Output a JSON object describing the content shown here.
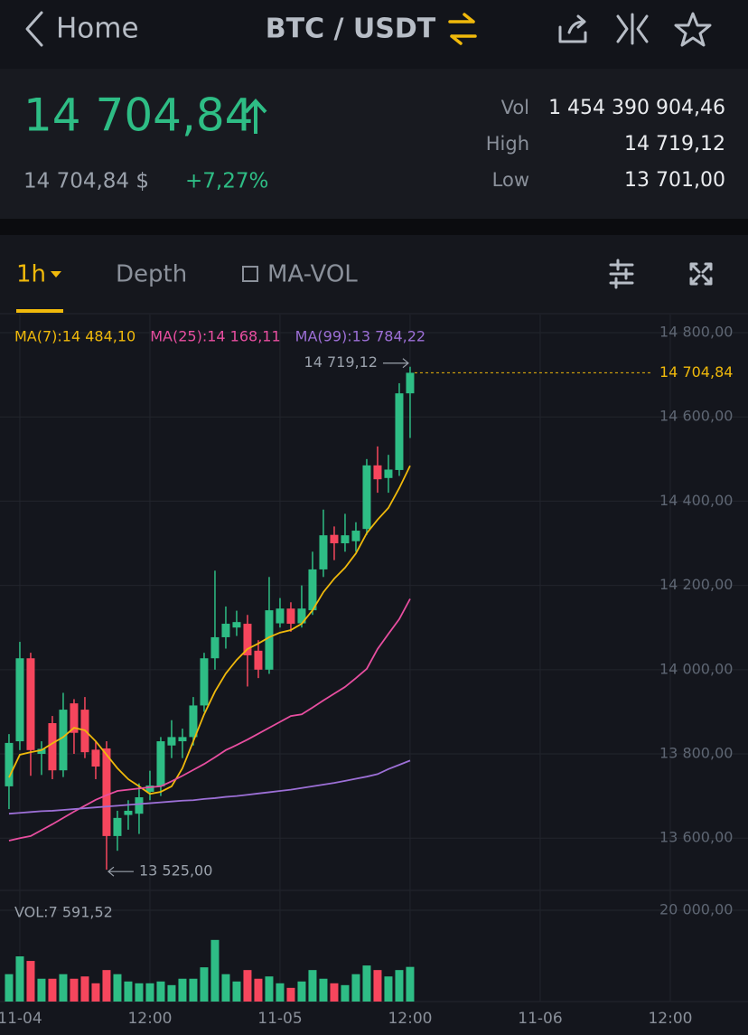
{
  "ui": {
    "back": "Home",
    "pair": "BTC / USDT",
    "price": "14 704,84",
    "price_usd": "14 704,84 $",
    "change": "+7,27%",
    "stats": [
      {
        "label": "Vol",
        "value": "1 454 390 904,46"
      },
      {
        "label": "High",
        "value": "14 719,12"
      },
      {
        "label": "Low",
        "value": "13 701,00"
      }
    ],
    "tabs": [
      "1h",
      "Depth",
      "MA-VOL"
    ]
  },
  "chart_data": [
    {
      "type": "candlestick",
      "x": [
        -1,
        0,
        1,
        2,
        3,
        4,
        5,
        6,
        7,
        8,
        9,
        10,
        11,
        12,
        13,
        14,
        15,
        16,
        17,
        18,
        19,
        20,
        21,
        22,
        23,
        24,
        25,
        26,
        27,
        28,
        29,
        30,
        31,
        32,
        33,
        34,
        35,
        36
      ],
      "open": [
        13723,
        13830,
        14027,
        13800,
        13873,
        13761,
        13920,
        13905,
        13810,
        13813,
        13605,
        13655,
        13658,
        13710,
        13723,
        13820,
        13830,
        13840,
        13915,
        14027,
        14077,
        14100,
        14109,
        14045,
        14000,
        14110,
        14145,
        14110,
        14141,
        14238,
        14320,
        14300,
        14305,
        14334,
        14485,
        14455,
        14474,
        14656
      ],
      "high": [
        13847,
        14066,
        14040,
        13830,
        13890,
        13945,
        13930,
        13935,
        13830,
        13830,
        13665,
        13690,
        13730,
        13760,
        13840,
        13880,
        13860,
        13935,
        14040,
        14235,
        14150,
        14140,
        14130,
        14070,
        14220,
        14170,
        14160,
        14200,
        14280,
        14380,
        14340,
        14370,
        14350,
        14500,
        14530,
        14510,
        14680,
        14719.12
      ],
      "low": [
        13669,
        13809,
        13748,
        13750,
        13740,
        13745,
        13800,
        13790,
        13740,
        13525,
        13570,
        13620,
        13610,
        13690,
        13700,
        13790,
        13790,
        13820,
        13900,
        14000,
        14050,
        14080,
        13960,
        13980,
        13990,
        14100,
        14090,
        14100,
        14130,
        14220,
        14260,
        14280,
        14280,
        14320,
        14420,
        14420,
        14460,
        14550
      ],
      "close": [
        13826,
        14027,
        13809,
        13812,
        13761,
        13905,
        13850,
        13804,
        13770,
        13605,
        13648,
        13665,
        13697,
        13725,
        13830,
        13840,
        13840,
        13915,
        14027,
        14077,
        14109,
        14113,
        14034,
        14000,
        14141,
        14145,
        14109,
        14145,
        14238,
        14319,
        14300,
        14319,
        14330,
        14485,
        14452,
        14475,
        14656,
        14704.84
      ],
      "up_color": "#2ebd85",
      "down_color": "#f6465d",
      "series": [
        {
          "name": "MA(7):14 484,10",
          "color": "#f0b90b",
          "values": [
            13744,
            13798,
            13804,
            13809,
            13825,
            13840,
            13862,
            13856,
            13830,
            13798,
            13766,
            13740,
            13723,
            13705,
            13710,
            13723,
            13766,
            13830,
            13894,
            13948,
            13991,
            14023,
            14049,
            14062,
            14077,
            14088,
            14094,
            14109,
            14141,
            14184,
            14216,
            14242,
            14276,
            14324,
            14356,
            14384,
            14431,
            14484.1
          ]
        },
        {
          "name": "MA(25):14 168,11",
          "color": "#e84ea0",
          "values": [
            13594,
            13600,
            13605,
            13619,
            13633,
            13648,
            13663,
            13677,
            13691,
            13702,
            13712,
            13715,
            13718,
            13721,
            13723,
            13735,
            13748,
            13762,
            13776,
            13792,
            13809,
            13821,
            13834,
            13848,
            13862,
            13876,
            13890,
            13894,
            13910,
            13927,
            13943,
            13959,
            13980,
            14002,
            14049,
            14085,
            14120,
            14168.11
          ]
        },
        {
          "name": "MA(99):13 784,22",
          "color": "#9c6fd6",
          "values": [
            13658,
            13660,
            13662,
            13664,
            13665,
            13667,
            13669,
            13671,
            13673,
            13675,
            13677,
            13679,
            13681,
            13683,
            13685,
            13687,
            13689,
            13690,
            13693,
            13695,
            13698,
            13700,
            13703,
            13706,
            13709,
            13712,
            13715,
            13719,
            13723,
            13727,
            13731,
            13736,
            13741,
            13746,
            13752,
            13764,
            13774,
            13784.22
          ]
        }
      ],
      "xlim": [
        -1.83,
        67.17
      ],
      "xticks": [
        {
          "value": 0,
          "label": "11-04"
        },
        {
          "value": 12,
          "label": "12:00"
        },
        {
          "value": 24,
          "label": "11-05"
        },
        {
          "value": 36,
          "label": "12:00"
        },
        {
          "value": 48,
          "label": "11-06"
        },
        {
          "value": 60,
          "label": "12:00"
        }
      ],
      "ylim": [
        13476,
        14843
      ],
      "yticks": [
        {
          "value": 14800,
          "label": "14 800,00"
        },
        {
          "value": 14600,
          "label": "14 600,00"
        },
        {
          "value": 14400,
          "label": "14 400,00"
        },
        {
          "value": 14200,
          "label": "14 200,00"
        },
        {
          "value": 14000,
          "label": "14 000,00"
        },
        {
          "value": 13800,
          "label": "13 800,00"
        },
        {
          "value": 13600,
          "label": "13 600,00"
        }
      ],
      "grid": true,
      "last_price": {
        "value": 14704.84,
        "label": "14 704,84",
        "color": "#f0b90b"
      },
      "high_marker": {
        "x": 36,
        "value": 14719.12,
        "label": "14 719,12"
      },
      "low_marker": {
        "x": 8,
        "value": 13525,
        "label": "13 525,00"
      }
    },
    {
      "type": "bar",
      "title": "VOL:7 591,52",
      "x": [
        -1,
        0,
        1,
        2,
        3,
        4,
        5,
        6,
        7,
        8,
        9,
        10,
        11,
        12,
        13,
        14,
        15,
        16,
        17,
        18,
        19,
        20,
        21,
        22,
        23,
        24,
        25,
        26,
        27,
        28,
        29,
        30,
        31,
        32,
        33,
        34,
        35,
        36
      ],
      "values": [
        6000,
        9900,
        8900,
        5000,
        5000,
        6000,
        5000,
        5500,
        4000,
        6900,
        6000,
        4400,
        4000,
        4000,
        4400,
        3600,
        5000,
        5000,
        7500,
        13500,
        6000,
        4400,
        6900,
        5000,
        5500,
        4000,
        3000,
        4400,
        6900,
        5000,
        4000,
        3600,
        6000,
        7900,
        6900,
        5500,
        6900,
        7591.52
      ],
      "ylim": [
        0,
        24356
      ],
      "yticks": [
        {
          "value": 20000,
          "label": "20 000,00"
        }
      ]
    }
  ]
}
